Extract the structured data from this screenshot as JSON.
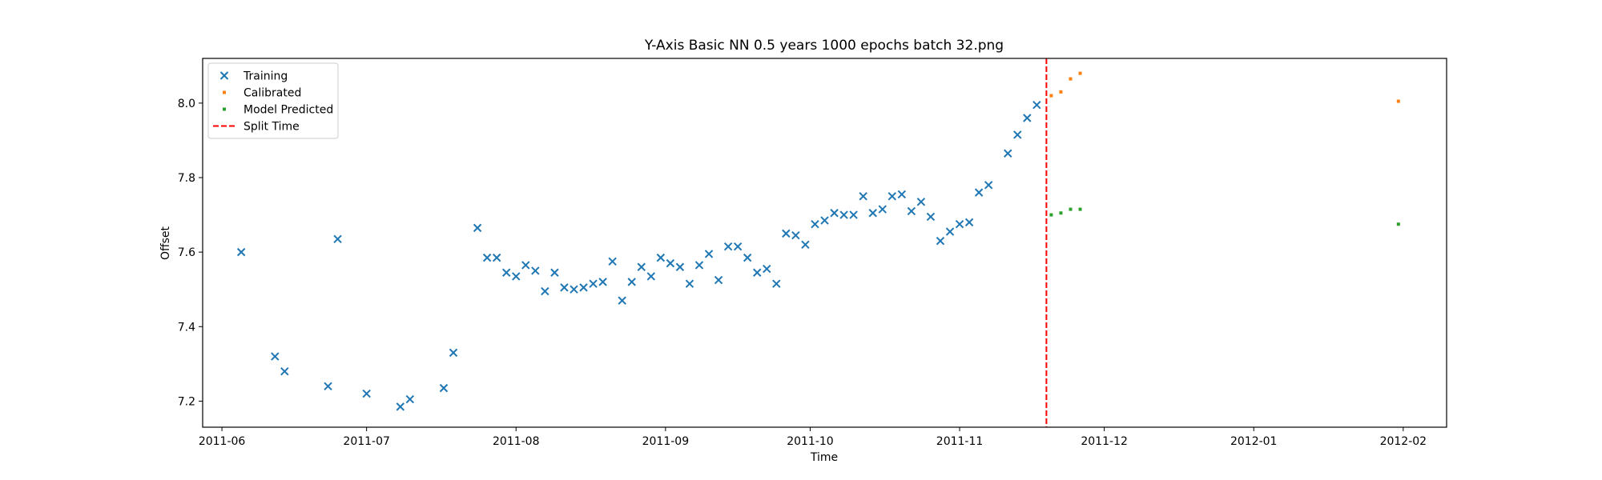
{
  "chart_data": {
    "type": "scatter",
    "title": "Y-Axis Basic NN 0.5 years 1000 epochs batch 32.png",
    "xlabel": "Time",
    "ylabel": "Offset",
    "x_axis": "date",
    "xlim": [
      "2011-05-28",
      "2012-02-10"
    ],
    "ylim": [
      7.13,
      8.12
    ],
    "x_ticks": [
      "2011-06-01",
      "2011-07-01",
      "2011-08-01",
      "2011-09-01",
      "2011-10-01",
      "2011-11-01",
      "2011-12-01",
      "2012-01-01",
      "2012-02-01"
    ],
    "x_tick_labels": [
      "2011-06",
      "2011-07",
      "2011-08",
      "2011-09",
      "2011-10",
      "2011-11",
      "2011-12",
      "2012-01",
      "2012-02"
    ],
    "y_ticks": [
      7.2,
      7.4,
      7.6,
      7.8,
      8.0
    ],
    "y_tick_labels": [
      "7.2",
      "7.4",
      "7.6",
      "7.8",
      "8.0"
    ],
    "grid": false,
    "legend_position": "top-left",
    "series": [
      {
        "name": "Training",
        "marker": "x",
        "color": "#1f77b4",
        "points": [
          [
            "2011-06-05",
            7.6
          ],
          [
            "2011-06-12",
            7.32
          ],
          [
            "2011-06-14",
            7.28
          ],
          [
            "2011-06-23",
            7.24
          ],
          [
            "2011-06-25",
            7.635
          ],
          [
            "2011-07-01",
            7.22
          ],
          [
            "2011-07-08",
            7.185
          ],
          [
            "2011-07-10",
            7.205
          ],
          [
            "2011-07-17",
            7.235
          ],
          [
            "2011-07-19",
            7.33
          ],
          [
            "2011-07-24",
            7.665
          ],
          [
            "2011-07-26",
            7.585
          ],
          [
            "2011-07-28",
            7.585
          ],
          [
            "2011-07-30",
            7.545
          ],
          [
            "2011-08-01",
            7.535
          ],
          [
            "2011-08-03",
            7.565
          ],
          [
            "2011-08-05",
            7.55
          ],
          [
            "2011-08-07",
            7.495
          ],
          [
            "2011-08-09",
            7.545
          ],
          [
            "2011-08-11",
            7.505
          ],
          [
            "2011-08-13",
            7.5
          ],
          [
            "2011-08-15",
            7.505
          ],
          [
            "2011-08-17",
            7.515
          ],
          [
            "2011-08-19",
            7.52
          ],
          [
            "2011-08-21",
            7.575
          ],
          [
            "2011-08-23",
            7.47
          ],
          [
            "2011-08-25",
            7.52
          ],
          [
            "2011-08-27",
            7.56
          ],
          [
            "2011-08-29",
            7.535
          ],
          [
            "2011-08-31",
            7.585
          ],
          [
            "2011-09-02",
            7.57
          ],
          [
            "2011-09-04",
            7.56
          ],
          [
            "2011-09-06",
            7.515
          ],
          [
            "2011-09-08",
            7.565
          ],
          [
            "2011-09-10",
            7.595
          ],
          [
            "2011-09-12",
            7.525
          ],
          [
            "2011-09-14",
            7.615
          ],
          [
            "2011-09-16",
            7.615
          ],
          [
            "2011-09-18",
            7.585
          ],
          [
            "2011-09-20",
            7.545
          ],
          [
            "2011-09-22",
            7.555
          ],
          [
            "2011-09-24",
            7.515
          ],
          [
            "2011-09-26",
            7.65
          ],
          [
            "2011-09-28",
            7.645
          ],
          [
            "2011-09-30",
            7.62
          ],
          [
            "2011-10-02",
            7.675
          ],
          [
            "2011-10-04",
            7.685
          ],
          [
            "2011-10-06",
            7.705
          ],
          [
            "2011-10-08",
            7.7
          ],
          [
            "2011-10-10",
            7.7
          ],
          [
            "2011-10-12",
            7.75
          ],
          [
            "2011-10-14",
            7.705
          ],
          [
            "2011-10-16",
            7.715
          ],
          [
            "2011-10-18",
            7.75
          ],
          [
            "2011-10-20",
            7.755
          ],
          [
            "2011-10-22",
            7.71
          ],
          [
            "2011-10-24",
            7.735
          ],
          [
            "2011-10-26",
            7.695
          ],
          [
            "2011-10-28",
            7.63
          ],
          [
            "2011-10-30",
            7.655
          ],
          [
            "2011-11-01",
            7.675
          ],
          [
            "2011-11-03",
            7.68
          ],
          [
            "2011-11-05",
            7.76
          ],
          [
            "2011-11-07",
            7.78
          ],
          [
            "2011-11-11",
            7.865
          ],
          [
            "2011-11-13",
            7.915
          ],
          [
            "2011-11-15",
            7.96
          ],
          [
            "2011-11-17",
            7.995
          ]
        ]
      },
      {
        "name": "Calibrated",
        "marker": "square",
        "color": "#ff7f0e",
        "points": [
          [
            "2011-11-20",
            8.02
          ],
          [
            "2011-11-22",
            8.03
          ],
          [
            "2011-11-24",
            8.065
          ],
          [
            "2011-11-26",
            8.08
          ],
          [
            "2012-01-31",
            8.005
          ]
        ]
      },
      {
        "name": "Model Predicted",
        "marker": "square",
        "color": "#2ca02c",
        "points": [
          [
            "2011-11-20",
            7.7
          ],
          [
            "2011-11-22",
            7.705
          ],
          [
            "2011-11-24",
            7.715
          ],
          [
            "2011-11-26",
            7.715
          ],
          [
            "2012-01-31",
            7.675
          ]
        ]
      }
    ],
    "reference_lines": [
      {
        "name": "Split Time",
        "orientation": "vertical",
        "x": "2011-11-19",
        "style": "dashed",
        "color": "#ff0000"
      }
    ]
  }
}
